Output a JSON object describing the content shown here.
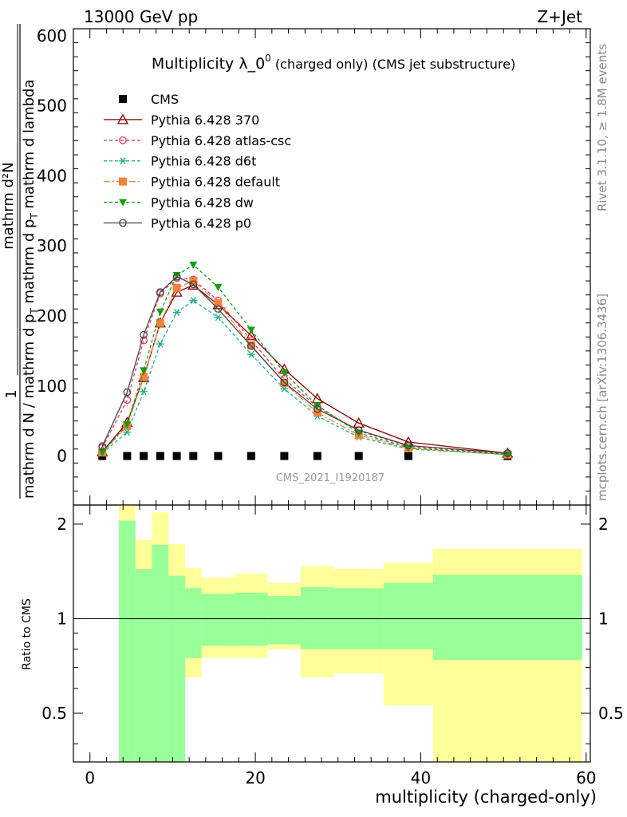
{
  "header": {
    "left": "13000 GeV pp",
    "right": "Z+Jet"
  },
  "side_labels": {
    "rivet": "Rivet 3.1.10, ≥ 1.8M events",
    "mcplots": "mcplots.cern.ch [arXiv:1306.3436]"
  },
  "watermark": "CMS_2021_I1920187",
  "chart_data": {
    "type": "line",
    "title": "Multiplicity λ_0^0 (charged only) (CMS jet substructure)",
    "title_main": "Multiplicity λ_0",
    "title_sup": "0",
    "title_tail": " (charged only) (CMS jet substructure)",
    "ylabel": "1 / mathrm d N / mathrm d p_T mathrm d^2N / mathrm d p_T mathrm d lambda",
    "ylabel_parts": {
      "one": "1",
      "num": "mathrm d²N",
      "den": "mathrm d N / mathrm d p",
      "den_sub": "T",
      "tail": " mathrm d p",
      "tail_sub": "T",
      "tail2": " mathrm d lambda"
    },
    "xlabel": "multiplicity (charged-only)",
    "ratio_ylabel": "Ratio to CMS",
    "xlim": [
      -2,
      60.5
    ],
    "ylim": [
      -70,
      610
    ],
    "ratio_ylim": [
      0.35,
      2.3
    ],
    "xticks": [
      0,
      20,
      40,
      60
    ],
    "yticks": [
      0,
      100,
      200,
      300,
      400,
      500,
      600
    ],
    "ratio_yticks": [
      0.5,
      1,
      2
    ],
    "x": [
      1.5,
      4.5,
      6.5,
      8.5,
      10.5,
      12.5,
      15.5,
      19.5,
      23.5,
      27.5,
      32.5,
      38.5,
      50.5
    ],
    "series": [
      {
        "name": "CMS",
        "color": "#000000",
        "marker": "square",
        "dash": "none",
        "values": [
          0,
          0,
          0,
          0,
          0,
          0,
          0,
          0,
          0,
          0,
          0,
          0,
          0
        ]
      },
      {
        "name": "Pythia 6.428 370",
        "color": "#8b0000",
        "marker": "triangle-open",
        "dash": "none",
        "values": [
          6,
          48,
          112,
          190,
          234,
          244,
          216,
          172,
          124,
          82,
          47,
          20,
          4
        ]
      },
      {
        "name": "Pythia 6.428 atlas-csc",
        "color": "#e8385f",
        "marker": "circle-open",
        "dash": "4,3",
        "values": [
          12,
          80,
          165,
          232,
          254,
          252,
          222,
          165,
          110,
          70,
          36,
          14,
          3
        ]
      },
      {
        "name": "Pythia 6.428 d6t",
        "color": "#1fae8a",
        "marker": "asterisk",
        "dash": "4,3",
        "values": [
          4,
          34,
          92,
          160,
          205,
          222,
          198,
          145,
          96,
          57,
          27,
          10,
          2
        ]
      },
      {
        "name": "Pythia 6.428 default",
        "color": "#f5823a",
        "marker": "square",
        "dash": "8,3,2,3",
        "values": [
          5,
          43,
          113,
          190,
          240,
          250,
          218,
          158,
          104,
          62,
          30,
          11,
          2
        ]
      },
      {
        "name": "Pythia 6.428 dw",
        "color": "#10a010",
        "marker": "triangle-down",
        "dash": "4,3",
        "values": [
          5,
          45,
          122,
          206,
          258,
          273,
          241,
          180,
          119,
          72,
          33,
          12,
          2
        ]
      },
      {
        "name": "Pythia 6.428 p0",
        "color": "#444444",
        "marker": "circle-open",
        "dash": "none",
        "values": [
          14,
          91,
          173,
          234,
          256,
          245,
          210,
          157,
          105,
          67,
          37,
          15,
          4
        ]
      }
    ],
    "ratio_bands": [
      {
        "x0": 3.5,
        "x1": 5.5,
        "g": [
          0.35,
          2.05
        ],
        "y": [
          0.35,
          2.3
        ]
      },
      {
        "x0": 5.5,
        "x1": 7.5,
        "g": [
          0.35,
          1.44
        ],
        "y": [
          0.35,
          1.78
        ]
      },
      {
        "x0": 7.5,
        "x1": 9.5,
        "g": [
          0.35,
          1.72
        ],
        "y": [
          0.35,
          2.18
        ]
      },
      {
        "x0": 9.5,
        "x1": 11.5,
        "g": [
          0.35,
          1.37
        ],
        "y": [
          0.35,
          1.73
        ]
      },
      {
        "x0": 11.5,
        "x1": 13.5,
        "g": [
          0.75,
          1.25
        ],
        "y": [
          0.65,
          1.45
        ]
      },
      {
        "x0": 13.5,
        "x1": 17.5,
        "g": [
          0.82,
          1.2
        ],
        "y": [
          0.75,
          1.35
        ]
      },
      {
        "x0": 17.5,
        "x1": 21.5,
        "g": [
          0.82,
          1.21
        ],
        "y": [
          0.75,
          1.39
        ]
      },
      {
        "x0": 21.5,
        "x1": 25.5,
        "g": [
          0.83,
          1.18
        ],
        "y": [
          0.8,
          1.3
        ]
      },
      {
        "x0": 25.5,
        "x1": 29.5,
        "g": [
          0.8,
          1.26
        ],
        "y": [
          0.65,
          1.47
        ]
      },
      {
        "x0": 29.5,
        "x1": 35.5,
        "g": [
          0.8,
          1.25
        ],
        "y": [
          0.67,
          1.44
        ]
      },
      {
        "x0": 35.5,
        "x1": 41.5,
        "g": [
          0.8,
          1.3
        ],
        "y": [
          0.53,
          1.51
        ]
      },
      {
        "x0": 41.5,
        "x1": 59.5,
        "g": [
          0.74,
          1.38
        ],
        "y": [
          0.35,
          1.67
        ]
      }
    ]
  }
}
